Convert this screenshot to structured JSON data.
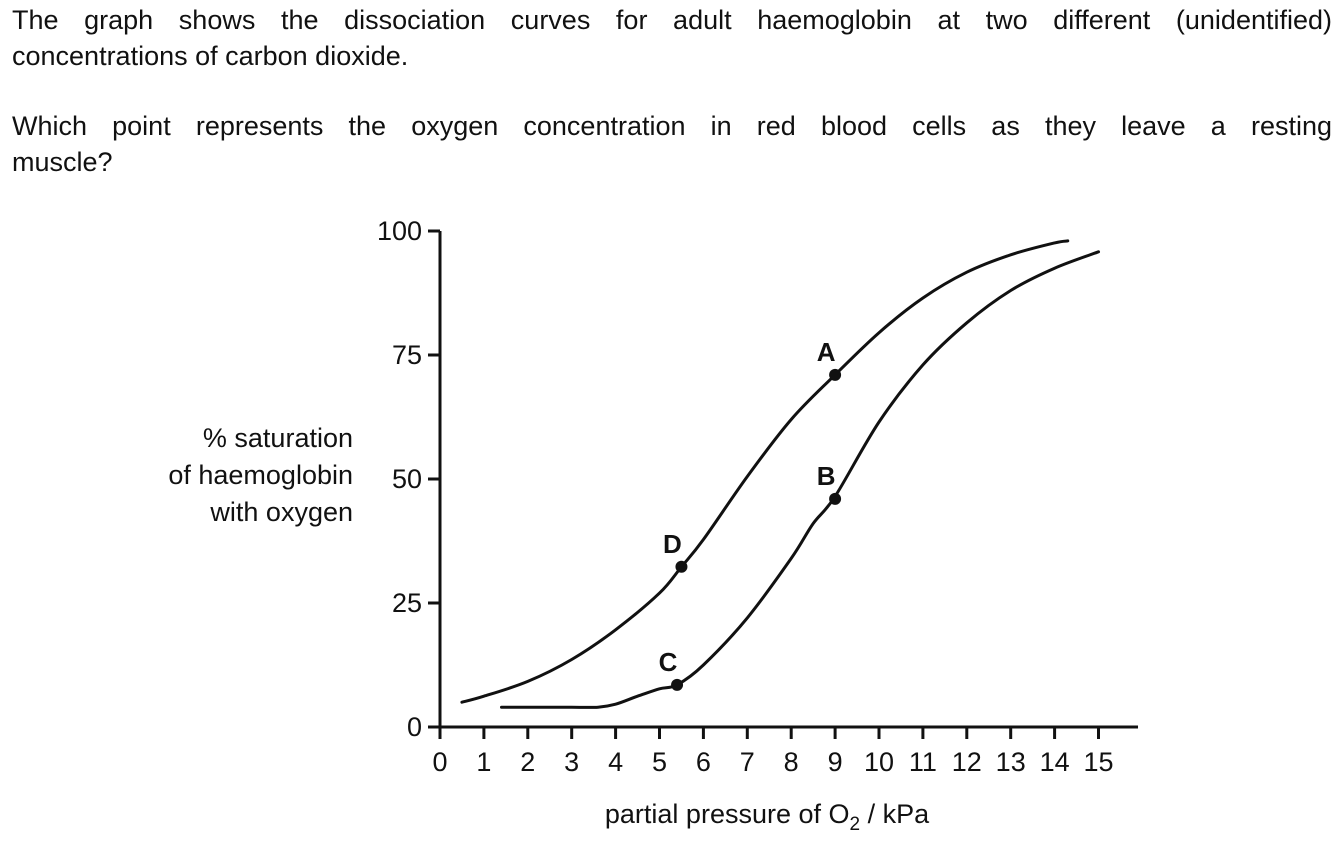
{
  "question": {
    "intro_line1": "The graph shows the dissociation curves for adult haemoglobin at two different (unidentified)",
    "intro_line2": "concentrations of carbon dioxide.",
    "prompt_line1": "Which point represents the oxygen concentration in red blood cells as they leave a resting",
    "prompt_line2": "muscle?"
  },
  "chart_data": {
    "type": "line",
    "title": "",
    "ylabel_lines": [
      "% saturation",
      "of haemoglobin",
      "with oxygen"
    ],
    "xlabel": {
      "prefix": "partial pressure of O",
      "subscript": "2",
      "suffix": " / kPa"
    },
    "xlim": [
      0,
      15.9
    ],
    "ylim": [
      0,
      100
    ],
    "x_ticks": [
      0,
      1,
      2,
      3,
      4,
      5,
      6,
      7,
      8,
      9,
      10,
      11,
      12,
      13,
      14,
      15
    ],
    "y_ticks": [
      0,
      25,
      50,
      75,
      100
    ],
    "grid": false,
    "legend": "none",
    "series": [
      {
        "points": [
          [
            0.5,
            5
          ],
          [
            1,
            6.2
          ],
          [
            2,
            9.2
          ],
          [
            3,
            13.6
          ],
          [
            4,
            19.6
          ],
          [
            5,
            27
          ],
          [
            5.5,
            32.3
          ],
          [
            6,
            37.8
          ],
          [
            7,
            50.5
          ],
          [
            8,
            62
          ],
          [
            9,
            71
          ],
          [
            10,
            79.5
          ],
          [
            11,
            86.5
          ],
          [
            12,
            91.7
          ],
          [
            13,
            95.2
          ],
          [
            14,
            97.6
          ],
          [
            14.3,
            98
          ]
        ]
      },
      {
        "points": [
          [
            1.4,
            4
          ],
          [
            2,
            4
          ],
          [
            3,
            4
          ],
          [
            3.6,
            4
          ],
          [
            4,
            4.6
          ],
          [
            4.5,
            6.2
          ],
          [
            5,
            7.7
          ],
          [
            5.4,
            8.5
          ],
          [
            6,
            12.5
          ],
          [
            7,
            22
          ],
          [
            8,
            34
          ],
          [
            8.5,
            41
          ],
          [
            9,
            46.5
          ],
          [
            10,
            61.5
          ],
          [
            11,
            73
          ],
          [
            12,
            81.5
          ],
          [
            13,
            88
          ],
          [
            14,
            92.5
          ],
          [
            15,
            95.8
          ]
        ]
      }
    ],
    "labeled_points": [
      {
        "label": "A",
        "x": 9.0,
        "y": 71
      },
      {
        "label": "B",
        "x": 9.0,
        "y": 46
      },
      {
        "label": "C",
        "x": 5.4,
        "y": 8.5
      },
      {
        "label": "D",
        "x": 5.5,
        "y": 32.3
      }
    ],
    "colors": {
      "ink": "#111111"
    }
  }
}
